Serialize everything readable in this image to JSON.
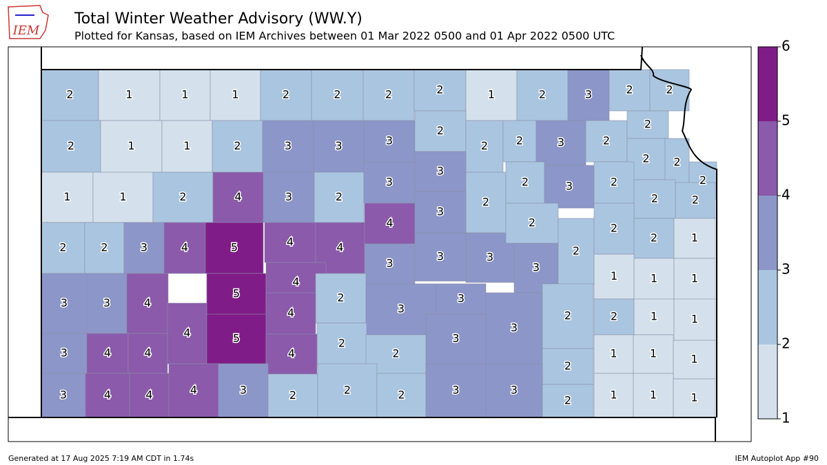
{
  "header": {
    "logo": "IEM",
    "title": "Total Winter Weather Advisory (WW.Y)",
    "subtitle": "Plotted for Kansas, based on IEM Archives  between 01 Mar 2022 0500 and 01 Apr 2022 0500 UTC"
  },
  "map": {
    "counties": [
      2,
      1,
      1,
      1,
      2,
      2,
      2,
      2,
      1,
      2,
      3,
      2,
      2,
      2,
      1,
      1,
      2,
      3,
      3,
      3,
      2,
      2,
      2,
      3,
      2,
      2,
      2,
      2,
      2,
      1,
      1,
      2,
      4,
      3,
      2,
      3,
      3,
      2,
      2,
      3,
      2,
      2,
      2,
      2,
      2,
      3,
      4,
      5,
      4,
      4,
      4,
      3,
      3,
      3,
      3,
      3,
      2,
      2,
      2,
      2,
      1,
      3,
      3,
      4,
      5,
      4,
      2,
      3,
      3,
      3,
      2,
      1,
      1,
      1,
      2,
      1,
      1,
      4,
      4,
      5,
      2,
      3,
      3,
      4,
      4,
      4,
      2,
      2,
      1,
      1,
      1,
      3,
      4,
      4,
      4,
      3,
      2,
      2,
      2,
      3,
      3,
      2,
      1,
      1,
      1
    ],
    "colorbar": {
      "lim": [
        1,
        6
      ],
      "ticks": [
        1,
        2,
        3,
        4,
        5,
        6
      ],
      "colors": [
        "#d4e1ec",
        "#aac5e0",
        "#8c96c8",
        "#8b5aab",
        "#801c87"
      ]
    }
  },
  "footer": {
    "left": "Generated at 17 Aug 2025 7:19 AM CDT in 1.74s",
    "right": "IEM Autoplot App #90"
  }
}
